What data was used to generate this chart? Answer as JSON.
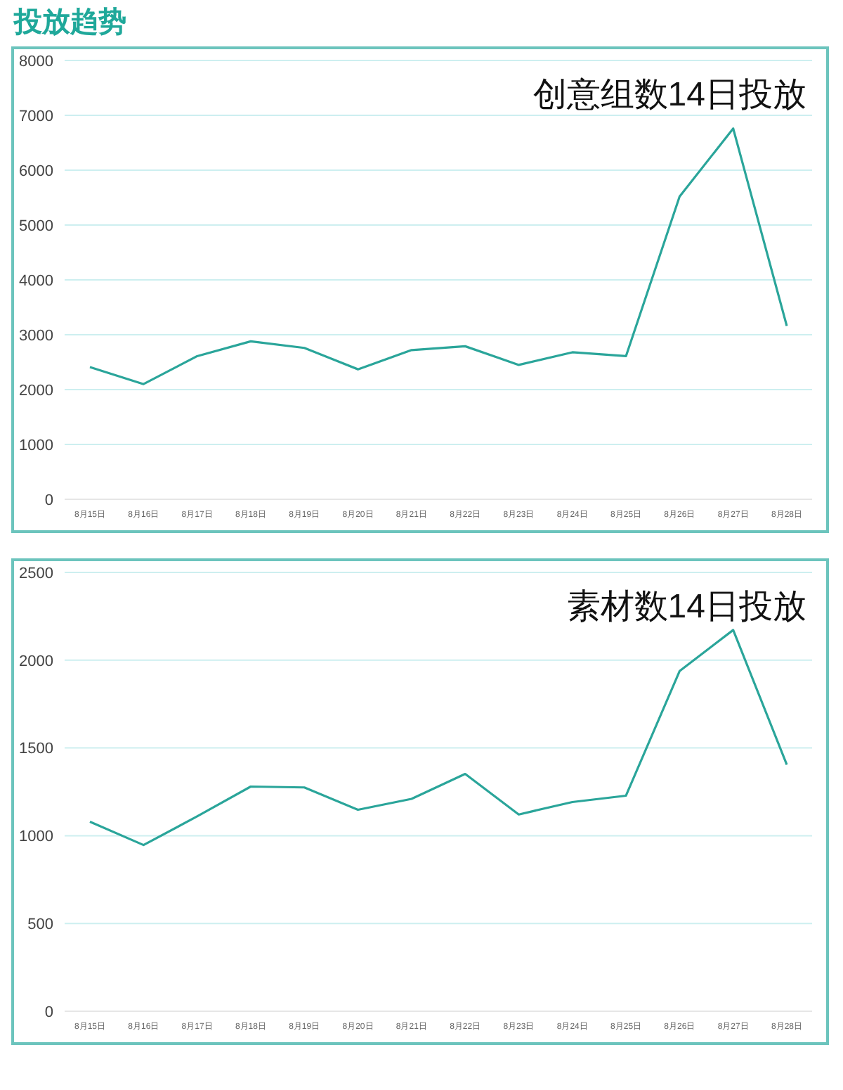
{
  "chart_data": [
    {
      "type": "line",
      "title": "投放趋势",
      "subtitle": "创意组数14日投放",
      "categories": [
        "8月15日",
        "8月16日",
        "8月17日",
        "8月18日",
        "8月19日",
        "8月20日",
        "8月21日",
        "8月22日",
        "8月23日",
        "8月24日",
        "8月25日",
        "8月26日",
        "8月27日",
        "8月28日"
      ],
      "series": [
        {
          "color": "#2aa59a",
          "values": [
            2410,
            2100,
            2610,
            2880,
            2760,
            2370,
            2720,
            2790,
            2450,
            2680,
            2610,
            5520,
            6760,
            3160
          ]
        }
      ],
      "ylim": [
        0,
        8000
      ],
      "yticks": [
        0,
        1000,
        2000,
        3000,
        4000,
        5000,
        6000,
        7000,
        8000
      ],
      "grid": "y",
      "legend": false,
      "marker": "none",
      "line_style": "solid"
    },
    {
      "type": "line",
      "subtitle": "素材数14日投放",
      "categories": [
        "8月15日",
        "8月16日",
        "8月17日",
        "8月18日",
        "8月19日",
        "8月20日",
        "8月21日",
        "8月22日",
        "8月23日",
        "8月24日",
        "8月25日",
        "8月26日",
        "8月27日",
        "8月28日"
      ],
      "series": [
        {
          "color": "#2aa59a",
          "values": [
            1080,
            947,
            1110,
            1280,
            1275,
            1148,
            1210,
            1352,
            1121,
            1192,
            1228,
            1938,
            2172,
            1405
          ]
        }
      ],
      "ylim": [
        0,
        2500
      ],
      "yticks": [
        0,
        500,
        1000,
        1500,
        2000,
        2500
      ],
      "grid": "y",
      "legend": false,
      "marker": "none",
      "line_style": "solid"
    }
  ]
}
